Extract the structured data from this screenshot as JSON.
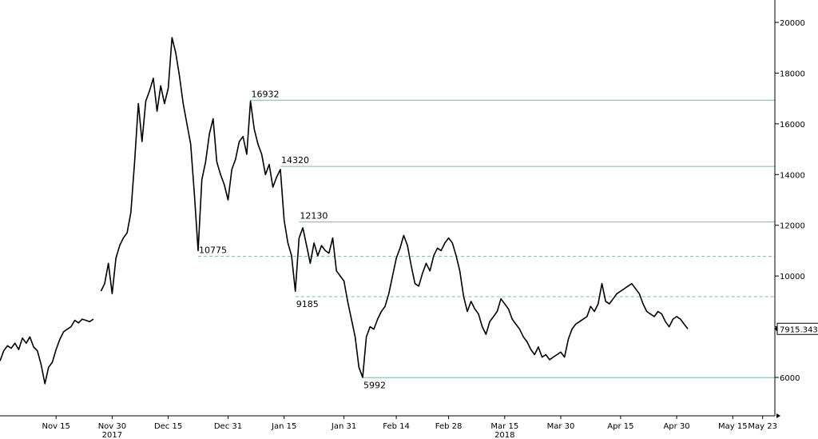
{
  "chart_data": {
    "type": "line",
    "title": "",
    "xlabel": "",
    "ylabel": "",
    "ylim": [
      5000,
      21000
    ],
    "grid": false,
    "y_axis_position": "right",
    "y_ticks": [
      6000,
      8000,
      10000,
      12000,
      14000,
      16000,
      18000,
      20000
    ],
    "y_tick_labels": [
      "6000",
      "8000",
      "10000",
      "12000",
      "14000",
      "16000",
      "18000",
      "20000"
    ],
    "x_ticks": [
      {
        "day": 15,
        "label": "Nov 15"
      },
      {
        "day": 30,
        "label": "Nov 30"
      },
      {
        "day": 45,
        "label": "Dec 15"
      },
      {
        "day": 61,
        "label": "Dec 31"
      },
      {
        "day": 76,
        "label": "Jan 15"
      },
      {
        "day": 92,
        "label": "Jan 31"
      },
      {
        "day": 106,
        "label": "Feb 14"
      },
      {
        "day": 120,
        "label": "Feb 28"
      },
      {
        "day": 135,
        "label": "Mar 15"
      },
      {
        "day": 150,
        "label": "Mar 30"
      },
      {
        "day": 166,
        "label": "Apr 15"
      },
      {
        "day": 181,
        "label": "Apr 30"
      },
      {
        "day": 196,
        "label": "May 15"
      },
      {
        "day": 204,
        "label": "May 23"
      }
    ],
    "year_labels": [
      {
        "day": 30,
        "label": "2017"
      },
      {
        "day": 135,
        "label": "2018"
      }
    ],
    "series": [
      {
        "color": "#000000",
        "points": [
          [
            0,
            6650
          ],
          [
            1,
            7050
          ],
          [
            2,
            7250
          ],
          [
            3,
            7150
          ],
          [
            4,
            7350
          ],
          [
            5,
            7100
          ],
          [
            6,
            7550
          ],
          [
            7,
            7350
          ],
          [
            8,
            7600
          ],
          [
            9,
            7200
          ],
          [
            10,
            7050
          ],
          [
            11,
            6500
          ],
          [
            12,
            5750
          ],
          [
            13,
            6400
          ],
          [
            14,
            6600
          ],
          [
            15,
            7100
          ],
          [
            16,
            7500
          ],
          [
            17,
            7800
          ],
          [
            18,
            7900
          ],
          [
            19,
            8000
          ],
          [
            20,
            8250
          ],
          [
            21,
            8150
          ],
          [
            22,
            8300
          ],
          [
            23,
            8250
          ],
          [
            24,
            8200
          ],
          [
            25,
            8300
          ],
          [
            27,
            9400
          ],
          [
            28,
            9700
          ],
          [
            29,
            10500
          ],
          [
            30,
            9300
          ],
          [
            31,
            10700
          ],
          [
            32,
            11200
          ],
          [
            33,
            11500
          ],
          [
            34,
            11700
          ],
          [
            35,
            12500
          ],
          [
            36,
            14500
          ],
          [
            37,
            16800
          ],
          [
            38,
            15300
          ],
          [
            39,
            16900
          ],
          [
            40,
            17300
          ],
          [
            41,
            17800
          ],
          [
            42,
            16500
          ],
          [
            43,
            17500
          ],
          [
            44,
            16800
          ],
          [
            45,
            17400
          ],
          [
            46,
            19400
          ],
          [
            47,
            18800
          ],
          [
            48,
            17900
          ],
          [
            49,
            16800
          ],
          [
            50,
            16000
          ],
          [
            51,
            15200
          ],
          [
            52,
            13200
          ],
          [
            53,
            11000
          ],
          [
            54,
            13800
          ],
          [
            55,
            14500
          ],
          [
            56,
            15600
          ],
          [
            57,
            16200
          ],
          [
            58,
            14500
          ],
          [
            59,
            14000
          ],
          [
            60,
            13600
          ],
          [
            61,
            13000
          ],
          [
            62,
            14200
          ],
          [
            63,
            14600
          ],
          [
            64,
            15300
          ],
          [
            65,
            15500
          ],
          [
            66,
            14800
          ],
          [
            67,
            16900
          ],
          [
            68,
            15800
          ],
          [
            69,
            15200
          ],
          [
            70,
            14800
          ],
          [
            71,
            14000
          ],
          [
            72,
            14400
          ],
          [
            73,
            13500
          ],
          [
            74,
            13900
          ],
          [
            75,
            14200
          ],
          [
            76,
            12200
          ],
          [
            77,
            11300
          ],
          [
            78,
            10800
          ],
          [
            79,
            9400
          ],
          [
            80,
            11500
          ],
          [
            81,
            11900
          ],
          [
            82,
            11200
          ],
          [
            83,
            10500
          ],
          [
            84,
            11300
          ],
          [
            85,
            10800
          ],
          [
            86,
            11200
          ],
          [
            87,
            11000
          ],
          [
            88,
            10900
          ],
          [
            89,
            11500
          ],
          [
            90,
            10200
          ],
          [
            91,
            10000
          ],
          [
            92,
            9800
          ],
          [
            93,
            9000
          ],
          [
            94,
            8300
          ],
          [
            95,
            7600
          ],
          [
            96,
            6400
          ],
          [
            97,
            6000
          ],
          [
            98,
            7600
          ],
          [
            99,
            8000
          ],
          [
            100,
            7900
          ],
          [
            101,
            8300
          ],
          [
            102,
            8600
          ],
          [
            103,
            8800
          ],
          [
            104,
            9300
          ],
          [
            105,
            10000
          ],
          [
            106,
            10700
          ],
          [
            107,
            11100
          ],
          [
            108,
            11600
          ],
          [
            109,
            11200
          ],
          [
            110,
            10400
          ],
          [
            111,
            9700
          ],
          [
            112,
            9600
          ],
          [
            113,
            10100
          ],
          [
            114,
            10500
          ],
          [
            115,
            10200
          ],
          [
            116,
            10800
          ],
          [
            117,
            11100
          ],
          [
            118,
            11000
          ],
          [
            119,
            11300
          ],
          [
            120,
            11500
          ],
          [
            121,
            11300
          ],
          [
            122,
            10800
          ],
          [
            123,
            10200
          ],
          [
            124,
            9200
          ],
          [
            125,
            8600
          ],
          [
            126,
            9000
          ],
          [
            127,
            8700
          ],
          [
            128,
            8500
          ],
          [
            129,
            8000
          ],
          [
            130,
            7700
          ],
          [
            131,
            8200
          ],
          [
            132,
            8400
          ],
          [
            133,
            8600
          ],
          [
            134,
            9100
          ],
          [
            135,
            8900
          ],
          [
            136,
            8700
          ],
          [
            137,
            8300
          ],
          [
            138,
            8100
          ],
          [
            139,
            7900
          ],
          [
            140,
            7600
          ],
          [
            141,
            7400
          ],
          [
            142,
            7100
          ],
          [
            143,
            6900
          ],
          [
            144,
            7200
          ],
          [
            145,
            6800
          ],
          [
            146,
            6900
          ],
          [
            147,
            6700
          ],
          [
            148,
            6800
          ],
          [
            149,
            6900
          ],
          [
            150,
            7000
          ],
          [
            151,
            6800
          ],
          [
            152,
            7500
          ],
          [
            153,
            7900
          ],
          [
            154,
            8100
          ],
          [
            155,
            8200
          ],
          [
            156,
            8300
          ],
          [
            157,
            8400
          ],
          [
            158,
            8800
          ],
          [
            159,
            8600
          ],
          [
            160,
            8900
          ],
          [
            161,
            9700
          ],
          [
            162,
            9000
          ],
          [
            163,
            8900
          ],
          [
            164,
            9100
          ],
          [
            165,
            9300
          ],
          [
            166,
            9400
          ],
          [
            167,
            9500
          ],
          [
            168,
            9600
          ],
          [
            169,
            9700
          ],
          [
            170,
            9500
          ],
          [
            171,
            9300
          ],
          [
            172,
            8900
          ],
          [
            173,
            8600
          ],
          [
            174,
            8500
          ],
          [
            175,
            8400
          ],
          [
            176,
            8600
          ],
          [
            177,
            8500
          ],
          [
            178,
            8200
          ],
          [
            179,
            8000
          ],
          [
            180,
            8300
          ],
          [
            181,
            8400
          ],
          [
            182,
            8300
          ],
          [
            183,
            8100
          ],
          [
            184,
            7915
          ]
        ]
      }
    ],
    "horizontal_levels": [
      {
        "value": 16932,
        "label": "16932",
        "style": "solid",
        "start_day": 67,
        "label_pos": "above"
      },
      {
        "value": 14320,
        "label": "14320",
        "style": "solid",
        "start_day": 75,
        "label_pos": "above"
      },
      {
        "value": 12130,
        "label": "12130",
        "style": "solid",
        "start_day": 80,
        "label_pos": "above"
      },
      {
        "value": 10775,
        "label": "10775",
        "style": "dashed",
        "start_day": 53,
        "label_pos": "above"
      },
      {
        "value": 9185,
        "label": "9185",
        "style": "dashed",
        "start_day": 79,
        "label_pos": "below"
      },
      {
        "value": 5992,
        "label": "5992",
        "style": "solid",
        "start_day": 97,
        "label_pos": "below"
      }
    ],
    "last_value_label": "7915.3438",
    "last_value": 7915,
    "colors": {
      "price_line": "#000000",
      "level_line": "#7fb8b3",
      "axis": "#000000",
      "last_label_border": "#000000"
    }
  }
}
